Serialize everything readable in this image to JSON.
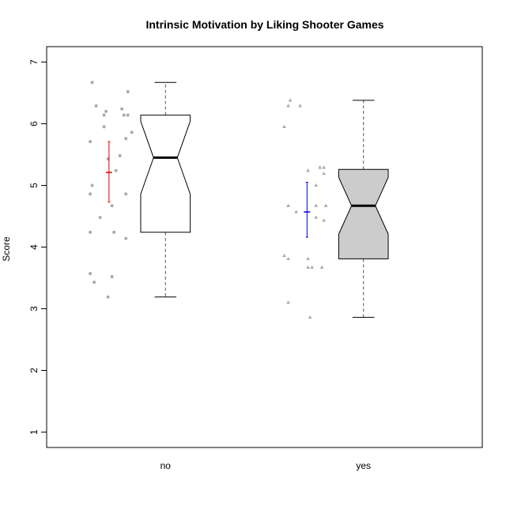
{
  "chart_data": {
    "type": "boxplot",
    "title": "Intrinsic Motivation by Liking Shooter Games",
    "xlabel": "",
    "ylabel": "Score",
    "ylim": [
      0.75,
      7.25
    ],
    "yticks": [
      "1",
      "2",
      "3",
      "4",
      "5",
      "6",
      "7"
    ],
    "categories": [
      "no",
      "yes"
    ],
    "colors": {
      "no_box": "#ffffff",
      "yes_box": "#cccccc",
      "no_points": "#aaaaaa",
      "yes_points": "#aaaaaa",
      "no_ci": "#dd0000",
      "yes_ci": "#0000cc"
    },
    "boxes": [
      {
        "name": "no",
        "min": 3.19,
        "q1": 4.24,
        "median": 5.45,
        "q3": 6.14,
        "max": 6.67,
        "notch_low": 4.86,
        "notch_high": 6.04
      },
      {
        "name": "yes",
        "min": 2.86,
        "q1": 3.81,
        "median": 4.67,
        "q3": 5.26,
        "max": 6.38,
        "notch_low": 4.21,
        "notch_high": 5.13
      }
    ],
    "mean_ci": [
      {
        "name": "no",
        "mean": 5.21,
        "lower": 4.73,
        "upper": 5.71
      },
      {
        "name": "yes",
        "mean": 4.57,
        "lower": 4.16,
        "upper": 5.05
      }
    ],
    "points": [
      [
        {
          "x": 0.63,
          "y": 6.67
        },
        {
          "x": 0.65,
          "y": 6.29
        },
        {
          "x": 0.7,
          "y": 6.2
        },
        {
          "x": 0.69,
          "y": 6.14
        },
        {
          "x": 0.78,
          "y": 6.24
        },
        {
          "x": 0.81,
          "y": 6.52
        },
        {
          "x": 0.79,
          "y": 6.14
        },
        {
          "x": 0.81,
          "y": 6.14
        },
        {
          "x": 0.69,
          "y": 5.95
        },
        {
          "x": 0.83,
          "y": 5.86
        },
        {
          "x": 0.8,
          "y": 5.76
        },
        {
          "x": 0.62,
          "y": 5.71
        },
        {
          "x": 0.77,
          "y": 5.48
        },
        {
          "x": 0.71,
          "y": 5.43
        },
        {
          "x": 0.75,
          "y": 5.24
        },
        {
          "x": 0.63,
          "y": 5.0
        },
        {
          "x": 0.62,
          "y": 4.86
        },
        {
          "x": 0.8,
          "y": 4.86
        },
        {
          "x": 0.73,
          "y": 4.67
        },
        {
          "x": 0.67,
          "y": 4.48
        },
        {
          "x": 0.62,
          "y": 4.24
        },
        {
          "x": 0.74,
          "y": 4.24
        },
        {
          "x": 0.8,
          "y": 4.14
        },
        {
          "x": 0.62,
          "y": 3.57
        },
        {
          "x": 0.73,
          "y": 3.52
        },
        {
          "x": 0.64,
          "y": 3.43
        },
        {
          "x": 0.71,
          "y": 3.19
        }
      ],
      [
        {
          "x": 1.63,
          "y": 6.38
        },
        {
          "x": 1.62,
          "y": 6.29
        },
        {
          "x": 1.68,
          "y": 6.29
        },
        {
          "x": 1.6,
          "y": 5.95
        },
        {
          "x": 1.78,
          "y": 5.29
        },
        {
          "x": 1.8,
          "y": 5.29
        },
        {
          "x": 1.72,
          "y": 5.24
        },
        {
          "x": 1.8,
          "y": 5.19
        },
        {
          "x": 1.76,
          "y": 5.0
        },
        {
          "x": 1.62,
          "y": 4.67
        },
        {
          "x": 1.76,
          "y": 4.67
        },
        {
          "x": 1.81,
          "y": 4.67
        },
        {
          "x": 1.66,
          "y": 4.57
        },
        {
          "x": 1.76,
          "y": 4.48
        },
        {
          "x": 1.8,
          "y": 4.43
        },
        {
          "x": 1.6,
          "y": 3.86
        },
        {
          "x": 1.62,
          "y": 3.81
        },
        {
          "x": 1.72,
          "y": 3.81
        },
        {
          "x": 1.72,
          "y": 3.67
        },
        {
          "x": 1.74,
          "y": 3.67
        },
        {
          "x": 1.79,
          "y": 3.67
        },
        {
          "x": 1.62,
          "y": 3.1
        },
        {
          "x": 1.73,
          "y": 2.86
        }
      ]
    ]
  }
}
